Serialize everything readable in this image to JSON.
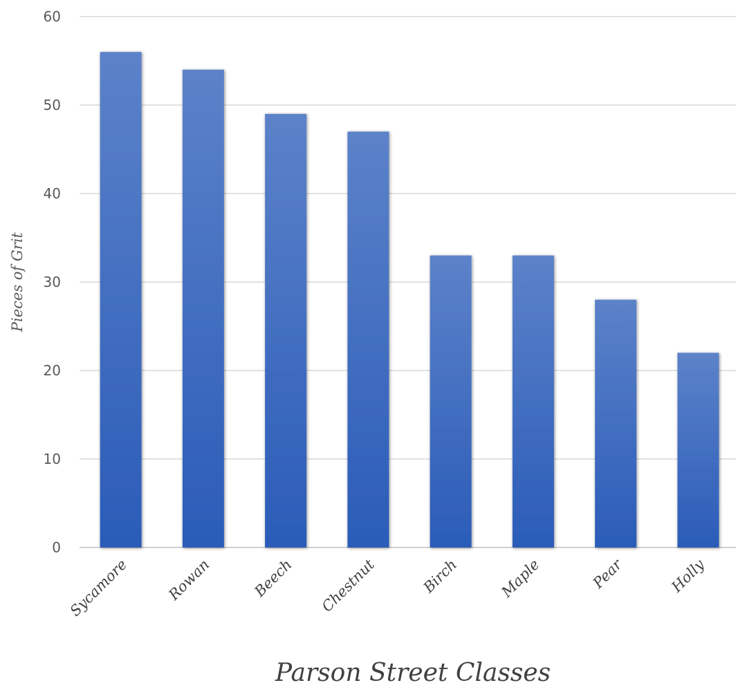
{
  "chart_data": {
    "type": "bar",
    "title": "",
    "xlabel": "Parson Street Classes",
    "ylabel": "Pieces of Grit",
    "categories": [
      "Sycamore",
      "Rowan",
      "Beech",
      "Chestnut",
      "Birch",
      "Maple",
      "Pear",
      "Holly"
    ],
    "values": [
      56,
      54,
      49,
      47,
      33,
      33,
      28,
      22
    ],
    "ylim": [
      0,
      60
    ],
    "yticks": [
      "0",
      "10",
      "20",
      "30",
      "40",
      "50",
      "60"
    ],
    "grid": true,
    "legend": "none",
    "colors": {
      "bar_top": "#5c82c9",
      "bar_bottom": "#2a5cb8",
      "gridline": "#d9d9d9"
    }
  }
}
